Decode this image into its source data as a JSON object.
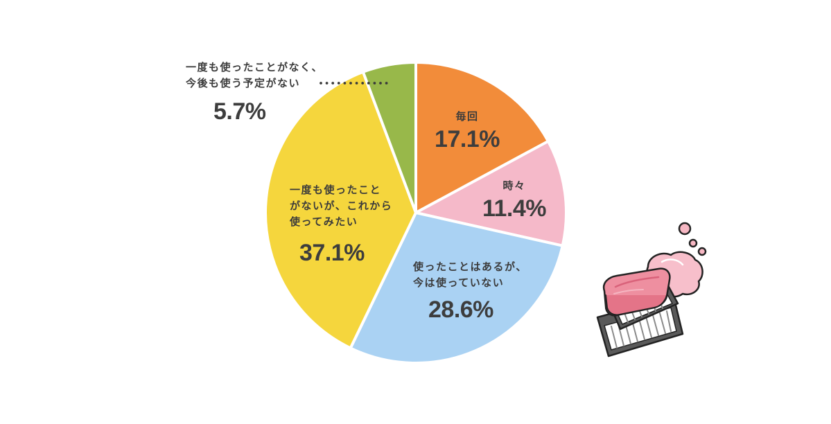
{
  "chart_data": {
    "type": "pie",
    "title": "",
    "start_angle_deg": 0,
    "direction": "clockwise",
    "slices": [
      {
        "label": "毎回",
        "value": 17.1,
        "display": "17.1%",
        "color": "#F28C3A"
      },
      {
        "label": "時々",
        "value": 11.4,
        "display": "11.4%",
        "color": "#F5B9C9"
      },
      {
        "label": "使ったことはあるが、今は使っていない",
        "value": 28.6,
        "display": "28.6%",
        "color": "#AAD2F3"
      },
      {
        "label": "一度も使ったことがないが、これから使ってみたい",
        "value": 37.1,
        "display": "37.1%",
        "color": "#F5D63D"
      },
      {
        "label": "一度も使ったことがなく、今後も使う予定がない",
        "value": 5.7,
        "display": "5.7%",
        "color": "#98B84A"
      }
    ],
    "legend": "none (labels placed directly on slices)",
    "annotations": [
      "dotted leader line from 5.7% label to green slice"
    ]
  },
  "labels": {
    "every_time": {
      "category": "毎回",
      "percent": "17.1%"
    },
    "sometimes": {
      "category": "時々",
      "percent": "11.4%"
    },
    "used_not_now": {
      "category": "使ったことはあるが、\n今は使っていない",
      "percent": "28.6%"
    },
    "want_to_try": {
      "category": "一度も使ったこと\nがないが、これから\n使ってみたい",
      "percent": "37.1%"
    },
    "never_no_plan": {
      "category": "一度も使ったことがなく、\n今後も使う予定がない",
      "percent": "5.7%"
    }
  },
  "illustration": {
    "description": "soap bar on soap dish with foam bubbles",
    "icon": "soap-icon"
  },
  "colors": {
    "text": "#3b3b3b",
    "separator": "#ffffff",
    "soap_pink": "#EE8FA0",
    "dish_gray": "#5a5a5a"
  }
}
